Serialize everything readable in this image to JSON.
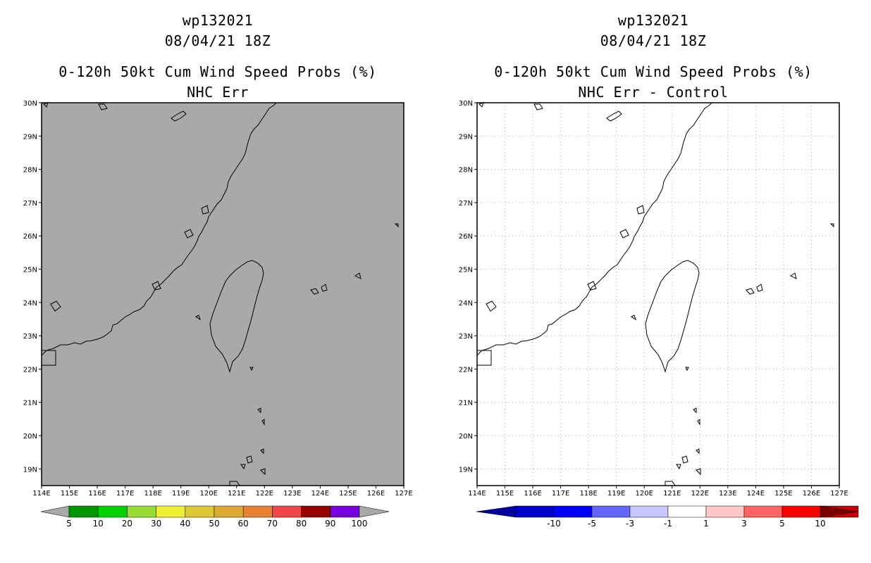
{
  "panels": [
    {
      "storm_id": "wp132021",
      "datetime": "08/04/21 18Z",
      "product": "0-120h 50kt Cum Wind Speed Probs (%)",
      "subtitle": "NHC Err",
      "background_color": "#a9a9a9",
      "gridlines": false
    },
    {
      "storm_id": "wp132021",
      "datetime": "08/04/21 18Z",
      "product": "0-120h 50kt Cum Wind Speed Probs (%)",
      "subtitle": "NHC Err - Control",
      "background_color": "#ffffff",
      "gridlines": true
    }
  ],
  "chart_data": [
    {
      "type": "heatmap",
      "title": "0-120h 50kt Cum Wind Speed Probs (%) — NHC Err",
      "x_ticks": [
        "114E",
        "115E",
        "116E",
        "117E",
        "118E",
        "119E",
        "120E",
        "121E",
        "122E",
        "123E",
        "124E",
        "125E",
        "126E",
        "127E"
      ],
      "y_ticks": [
        "30N",
        "29N",
        "28N",
        "27N",
        "26N",
        "25N",
        "24N",
        "23N",
        "22N",
        "21N",
        "20N",
        "19N"
      ],
      "xlim": [
        114,
        127
      ],
      "ylim": [
        18.5,
        30
      ],
      "colorbar": {
        "labels": [
          "5",
          "10",
          "20",
          "30",
          "40",
          "50",
          "60",
          "70",
          "80",
          "90",
          "100"
        ],
        "colors": [
          "#009600",
          "#00d200",
          "#96dc32",
          "#f0f032",
          "#dcc832",
          "#dcaa32",
          "#e68232",
          "#f04646",
          "#960000",
          "#7800dc"
        ],
        "end_color": "#a9a9a9"
      }
    },
    {
      "type": "heatmap",
      "title": "0-120h 50kt Cum Wind Speed Probs (%) — NHC Err - Control",
      "x_ticks": [
        "114E",
        "115E",
        "116E",
        "117E",
        "118E",
        "119E",
        "120E",
        "121E",
        "122E",
        "123E",
        "124E",
        "125E",
        "126E",
        "127E"
      ],
      "y_ticks": [
        "30N",
        "29N",
        "28N",
        "27N",
        "26N",
        "25N",
        "24N",
        "23N",
        "22N",
        "21N",
        "20N",
        "19N"
      ],
      "xlim": [
        114,
        127
      ],
      "ylim": [
        18.5,
        30
      ],
      "colorbar": {
        "labels": [
          "-10",
          "-5",
          "-3",
          "-1",
          "1",
          "3",
          "5",
          "10"
        ],
        "colors": [
          "#0000c8",
          "#0000ff",
          "#6464ff",
          "#c8c8ff",
          "#ffffff",
          "#ffc8c8",
          "#ff6464",
          "#ff0000",
          "#c80000"
        ],
        "left_end_color": "#0000a0",
        "right_end_color": "#7a0000"
      }
    }
  ]
}
